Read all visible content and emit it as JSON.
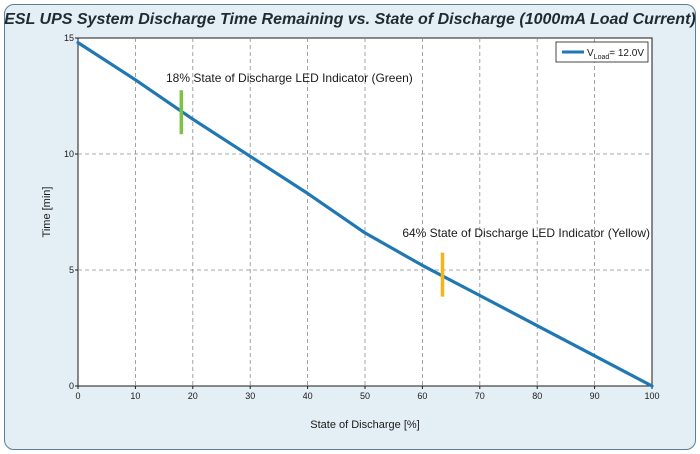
{
  "chart_data": {
    "type": "line",
    "title": "ESL UPS System Discharge Time Remaining vs. State of Discharge (1000mA Load Current)",
    "xlabel": "State of Discharge [%]",
    "ylabel": "Time [min]",
    "xlim": [
      0,
      100
    ],
    "ylim": [
      0,
      15
    ],
    "x_ticks": [
      "0",
      "10",
      "20",
      "30",
      "40",
      "50",
      "60",
      "70",
      "80",
      "90",
      "100"
    ],
    "y_ticks": [
      "0",
      "5",
      "10",
      "15"
    ],
    "grid": true,
    "legend": {
      "position": "top-right",
      "label_prefix": "V",
      "label_sub": "Load",
      "label_value": "= 12.0V"
    },
    "series": [
      {
        "name": "VLoad = 12.0V",
        "color": "#1f77b4",
        "x": [
          0,
          10,
          20,
          30,
          40,
          50,
          60,
          70,
          80,
          90,
          100
        ],
        "y": [
          14.8,
          13.2,
          11.5,
          9.9,
          8.3,
          6.6,
          5.2,
          3.9,
          2.6,
          1.3,
          0.0
        ]
      }
    ],
    "annotations": [
      {
        "text": "18% State of Discharge LED Indicator (Green)",
        "x": 18,
        "y": 11.8,
        "color": "#7dc242"
      },
      {
        "text": "64% State of Discharge LED Indicator (Yellow)",
        "x": 63.5,
        "y": 4.8,
        "color": "#f4b41a"
      }
    ]
  }
}
